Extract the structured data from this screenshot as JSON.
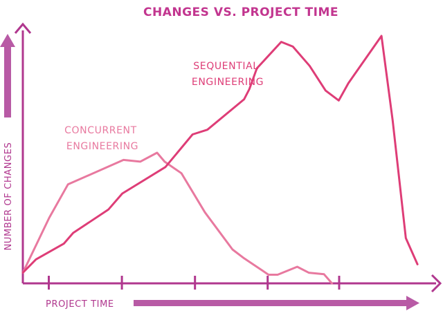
{
  "colors": {
    "axis": "#b0378e",
    "title": "#c2358f",
    "sequential": "#de3d77",
    "concurrent": "#e8799f",
    "arrow": "#b85aa5"
  },
  "chart_data": {
    "type": "line",
    "title": "CHANGES VS. PROJECT TIME",
    "xlabel": "PROJECT TIME",
    "ylabel": "NUMBER OF CHANGES",
    "xlim": [
      0,
      100
    ],
    "ylim": [
      0,
      100
    ],
    "grid": false,
    "legend": "inline-labels",
    "tick_positions": [
      6.5,
      24.8,
      43.1,
      61.3,
      79.2
    ],
    "series": [
      {
        "name": "SEQUENTIAL\nENGINEERING",
        "color": "#de3d77",
        "x": [
          0,
          3.3,
          10.3,
          12.6,
          21.4,
          24.9,
          35.7,
          42.5,
          46.2,
          55.4,
          56.7,
          58.6,
          64.7,
          67.6,
          71.8,
          75.8,
          79.1,
          81.5,
          89.8,
          92.6,
          95.9,
          98.8
        ],
        "y": [
          4.3,
          9.7,
          16.1,
          20.4,
          29.8,
          36.3,
          47.0,
          60.2,
          62.1,
          74.4,
          78.5,
          86.9,
          97.6,
          95.7,
          87.9,
          77.9,
          73.9,
          80.9,
          100.0,
          65.8,
          18.3,
          7.7
        ]
      },
      {
        "name": "CONCURRENT\nENGINEERING",
        "color": "#e8799f",
        "x": [
          0,
          6.6,
          11.3,
          25.2,
          29.4,
          33.6,
          35.5,
          39.7,
          45.6,
          52.5,
          55.4,
          59.6,
          61.5,
          63.8,
          68.7,
          71.6,
          75.4,
          77.4
        ],
        "y": [
          4.3,
          26.5,
          40.0,
          49.9,
          49.2,
          52.8,
          49.2,
          44.5,
          28.7,
          13.7,
          10.1,
          5.6,
          3.5,
          3.5,
          6.7,
          4.3,
          3.7,
          0.0
        ]
      }
    ]
  }
}
